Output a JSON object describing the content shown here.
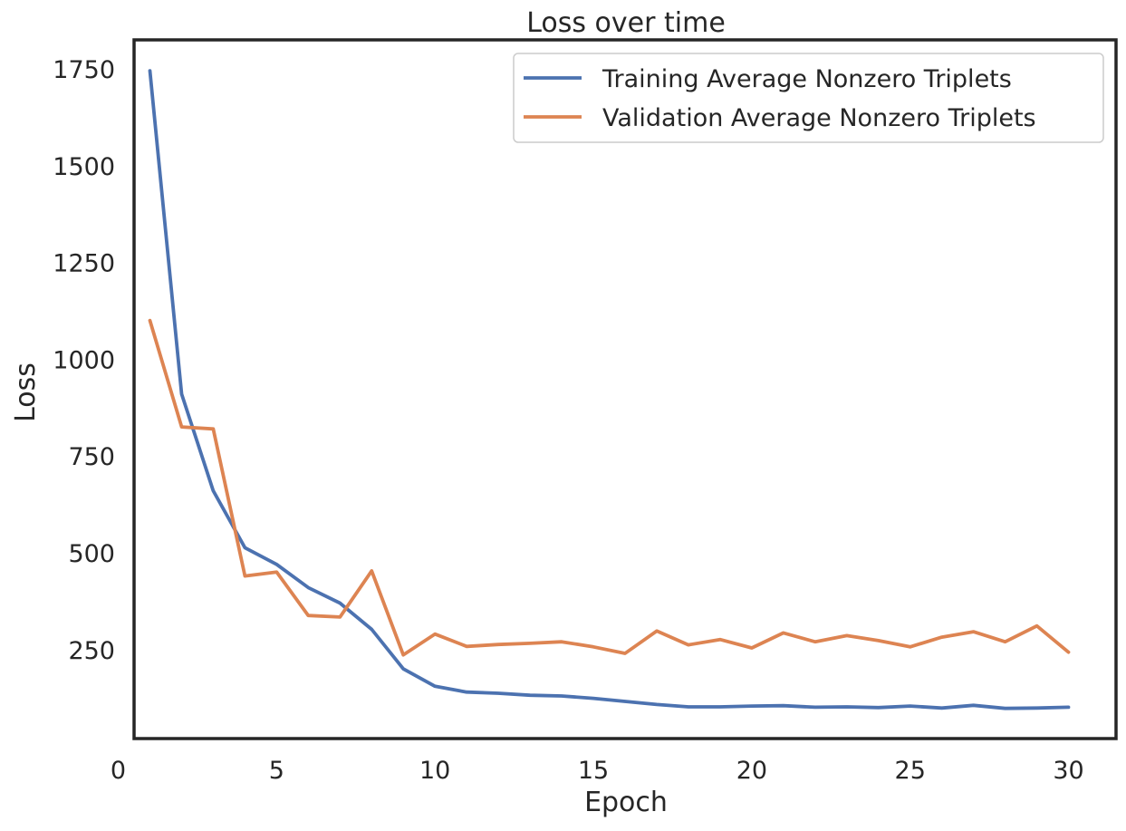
{
  "chart_data": {
    "type": "line",
    "title": "Loss over time",
    "xlabel": "Epoch",
    "ylabel": "Loss",
    "xlim": [
      0.5,
      31.5
    ],
    "ylim": [
      20,
      1825
    ],
    "xticks": [
      0,
      5,
      10,
      15,
      20,
      25,
      30
    ],
    "yticks": [
      250,
      500,
      750,
      1000,
      1250,
      1500,
      1750
    ],
    "grid": false,
    "legend_position": "top-right",
    "x": [
      1,
      2,
      3,
      4,
      5,
      6,
      7,
      8,
      9,
      10,
      11,
      12,
      13,
      14,
      15,
      16,
      17,
      18,
      19,
      20,
      21,
      22,
      23,
      24,
      25,
      26,
      27,
      28,
      29,
      30
    ],
    "series": [
      {
        "name": "Training Average Nonzero Triplets",
        "color": "#4c72b0",
        "values": [
          1745,
          910,
          660,
          513,
          470,
          410,
          370,
          302,
          200,
          155,
          140,
          137,
          132,
          130,
          124,
          116,
          108,
          102,
          102,
          104,
          105,
          101,
          102,
          100,
          104,
          99,
          106,
          98,
          99,
          101
        ]
      },
      {
        "name": "Validation Average Nonzero Triplets",
        "color": "#dd8452",
        "values": [
          1100,
          825,
          820,
          440,
          450,
          338,
          334,
          453,
          236,
          290,
          258,
          263,
          266,
          270,
          257,
          240,
          298,
          262,
          276,
          254,
          293,
          270,
          286,
          273,
          257,
          282,
          296,
          270,
          311,
          243
        ]
      }
    ]
  }
}
